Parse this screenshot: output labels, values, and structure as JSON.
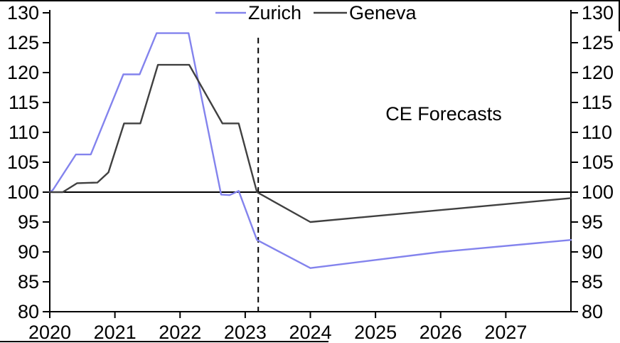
{
  "chart_data": {
    "type": "line",
    "title": "",
    "legend": {
      "position": "top",
      "entries": [
        "Zurich",
        "Geneva"
      ]
    },
    "annotation": {
      "text": "CE Forecasts"
    },
    "x_axis": {
      "min": 2020,
      "max": 2028,
      "ticks": [
        2020,
        2021,
        2022,
        2023,
        2024,
        2025,
        2026,
        2027
      ]
    },
    "y_axis_left": {
      "min": 80,
      "max": 130,
      "ticks": [
        80,
        85,
        90,
        95,
        100,
        105,
        110,
        115,
        120,
        125,
        130
      ]
    },
    "y_axis_right": {
      "min": 80,
      "max": 130,
      "ticks": [
        80,
        85,
        90,
        95,
        100,
        105,
        110,
        115,
        120,
        125,
        130
      ]
    },
    "reference_line_y": 100,
    "forecast_divider_x": 2023.2,
    "colors": {
      "axis": "#000000",
      "reference_line": "#000000",
      "forecast_divider": "#000000"
    },
    "series": [
      {
        "name": "Zurich",
        "color": "#8383ED",
        "points": [
          [
            2020.0,
            100.0
          ],
          [
            2020.05,
            100.4
          ],
          [
            2020.4,
            106.3
          ],
          [
            2020.63,
            106.3
          ],
          [
            2021.13,
            119.7
          ],
          [
            2021.38,
            119.7
          ],
          [
            2021.64,
            126.6
          ],
          [
            2022.13,
            126.6
          ],
          [
            2022.63,
            99.6
          ],
          [
            2022.76,
            99.5
          ],
          [
            2022.9,
            100.2
          ],
          [
            2023.18,
            92.0
          ],
          [
            2024.0,
            87.3
          ],
          [
            2026.0,
            90.0
          ],
          [
            2028.0,
            92.0
          ]
        ]
      },
      {
        "name": "Geneva",
        "color": "#404040",
        "points": [
          [
            2020.0,
            100.0
          ],
          [
            2020.2,
            100.0
          ],
          [
            2020.42,
            101.5
          ],
          [
            2020.73,
            101.6
          ],
          [
            2020.9,
            103.3
          ],
          [
            2021.14,
            111.5
          ],
          [
            2021.39,
            111.5
          ],
          [
            2021.66,
            121.3
          ],
          [
            2022.14,
            121.3
          ],
          [
            2022.65,
            111.5
          ],
          [
            2022.9,
            111.5
          ],
          [
            2023.18,
            100.0
          ],
          [
            2024.0,
            95.0
          ],
          [
            2028.0,
            99.0
          ]
        ]
      }
    ]
  }
}
